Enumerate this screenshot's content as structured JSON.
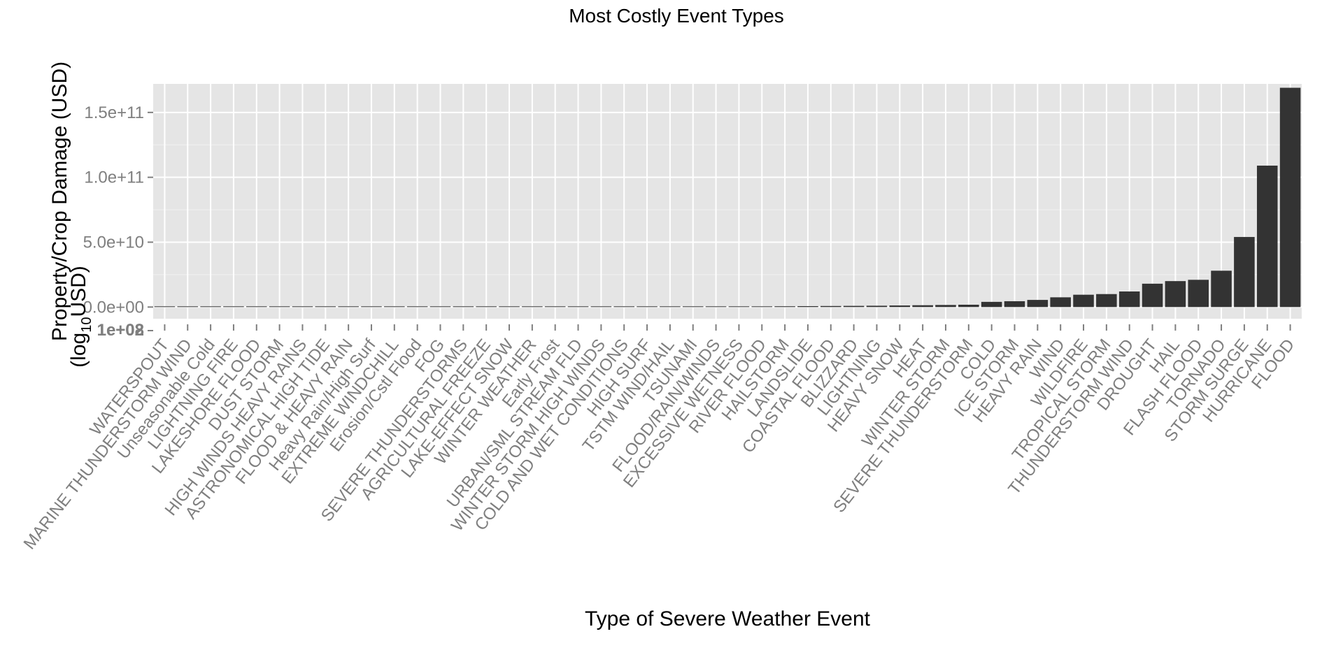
{
  "chart_data": {
    "type": "bar",
    "title": "Most Costly Event Types",
    "xlabel": "Type of Severe Weather Event",
    "ylabel": "Property/Crop Damage (USD)",
    "ylabel_line2_prefix": "(log",
    "ylabel_line2_sub": "10",
    "ylabel_line2_suffix": "USD)",
    "ylim": [
      -9000000000,
      172000000000
    ],
    "yticks": [
      0,
      50000000000,
      100000000000,
      150000000000
    ],
    "ytick_labels": [
      "0.0e+00",
      "5.0e+10",
      "1.0e+11",
      "1.5e+11"
    ],
    "overlap_tick_labels": [
      "1e+08",
      "1e+02"
    ],
    "grid": true,
    "legend": "none",
    "categories": [
      "WATERSPOUT",
      "MARINE THUNDERSTORM WIND",
      "Unseasonable Cold",
      "LIGHTNING FIRE",
      "LAKESHORE FLOOD",
      "DUST STORM",
      "HIGH WINDS HEAVY RAINS",
      "ASTRONOMICAL HIGH TIDE",
      "FLOOD & HEAVY RAIN",
      "Heavy Rain/High Surf",
      "EXTREME WINDCHILL",
      "Erosion/Cstl Flood",
      "FOG",
      "SEVERE THUNDERSTORMS",
      "AGRICULTURAL FREEZE",
      "LAKE-EFFECT SNOW",
      "WINTER WEATHER",
      "Early Frost",
      "URBAN/SML STREAM FLD",
      "WINTER STORM HIGH WINDS",
      "COLD AND WET CONDITIONS",
      "HIGH SURF",
      "TSTM WIND/HAIL",
      "TSUNAMI",
      "FLOOD/RAIN/WINDS",
      "EXCESSIVE WETNESS",
      "RIVER FLOOD",
      "HAILSTORM",
      "LANDSLIDE",
      "COASTAL FLOOD",
      "BLIZZARD",
      "LIGHTNING",
      "HEAVY SNOW",
      "HEAT",
      "WINTER STORM",
      "SEVERE THUNDERSTORM",
      "COLD",
      "ICE STORM",
      "HEAVY RAIN",
      "WIND",
      "WILDFIRE",
      "TROPICAL STORM",
      "THUNDERSTORM WIND",
      "DROUGHT",
      "HAIL",
      "FLASH FLOOD",
      "TORNADO",
      "STORM SURGE",
      "HURRICANE",
      "FLOOD"
    ],
    "values": [
      5000000,
      5500000,
      6000000,
      6500000,
      7500000,
      8000000,
      9000000,
      10000000,
      11000000,
      12000000,
      14000000,
      15000000,
      17000000,
      20000000,
      22000000,
      25000000,
      28000000,
      30000000,
      35000000,
      40000000,
      45000000,
      50000000,
      60000000,
      140000000,
      300000000,
      400000000,
      500000000,
      600000000,
      700000000,
      800000000,
      900000000,
      1000000000,
      1200000000,
      1400000000,
      1600000000,
      1800000000,
      4000000000,
      4500000000,
      5500000000,
      7500000000,
      9500000000,
      10000000000,
      12000000000,
      18000000000,
      20000000000,
      21000000000,
      28000000000,
      54000000000,
      109000000000,
      169000000000
    ],
    "colors": {
      "panel": "#e5e5e5",
      "grid_major": "#ffffff",
      "grid_minor": "#f2f2f2",
      "bar": "#333333",
      "tick": "#7f7f7f"
    }
  }
}
